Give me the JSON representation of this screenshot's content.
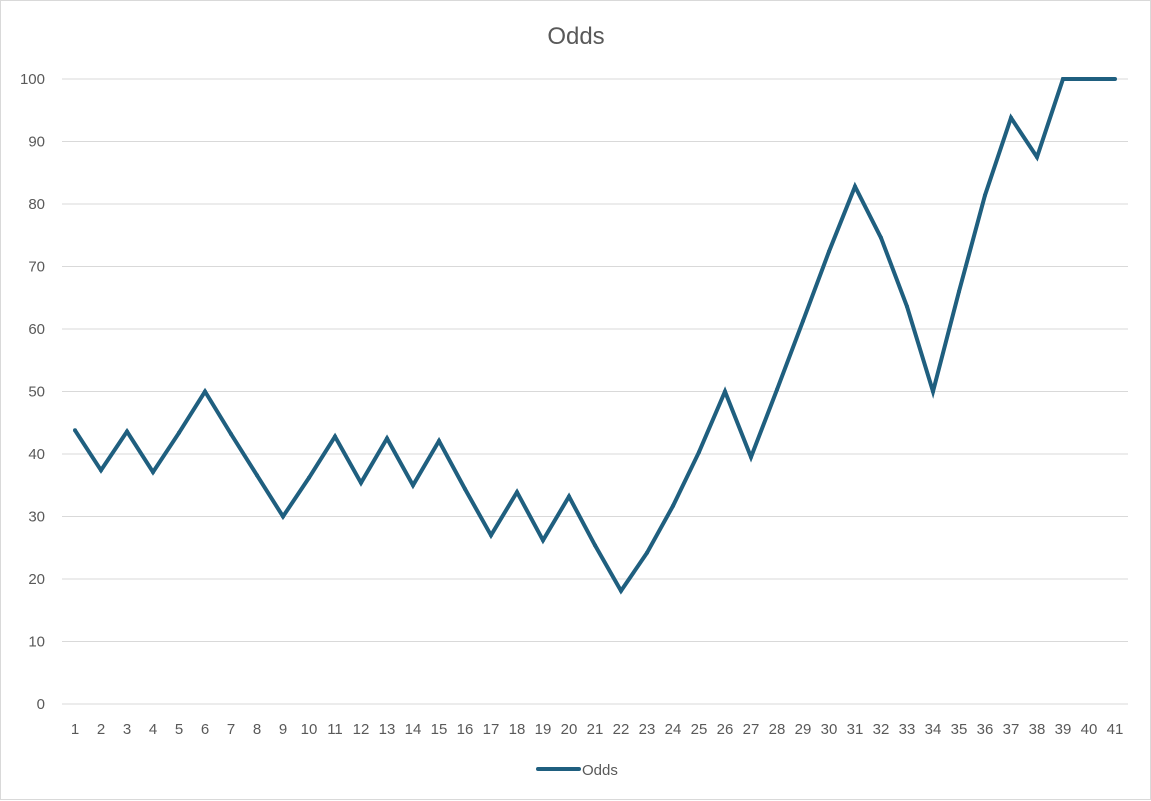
{
  "chart_data": {
    "type": "line",
    "title": "Odds",
    "xlabel": "",
    "ylabel": "",
    "categories": [
      "1",
      "2",
      "3",
      "4",
      "5",
      "6",
      "7",
      "8",
      "9",
      "10",
      "11",
      "12",
      "13",
      "14",
      "15",
      "16",
      "17",
      "18",
      "19",
      "20",
      "21",
      "22",
      "23",
      "24",
      "25",
      "26",
      "27",
      "28",
      "29",
      "30",
      "31",
      "32",
      "33",
      "34",
      "35",
      "36",
      "37",
      "38",
      "39",
      "40",
      "41"
    ],
    "ylim": [
      0,
      100
    ],
    "yticks": [
      0,
      10,
      20,
      30,
      40,
      50,
      60,
      70,
      80,
      90,
      100
    ],
    "grid": true,
    "legend": "bottom",
    "series": [
      {
        "name": "Odds",
        "color": "#1f5f7f",
        "values": [
          43.8,
          37.4,
          43.6,
          37.1,
          43.4,
          50.0,
          43.2,
          36.6,
          30.0,
          36.2,
          42.8,
          35.4,
          42.5,
          35.0,
          42.1,
          34.4,
          27.0,
          33.9,
          26.2,
          33.2,
          25.4,
          18.1,
          24.2,
          31.7,
          40.3,
          50.0,
          39.5,
          50.3,
          61.3,
          72.4,
          82.8,
          74.6,
          63.6,
          50.0,
          66.0,
          81.4,
          93.8,
          87.5,
          100.0,
          100.0,
          100.0
        ]
      }
    ]
  }
}
